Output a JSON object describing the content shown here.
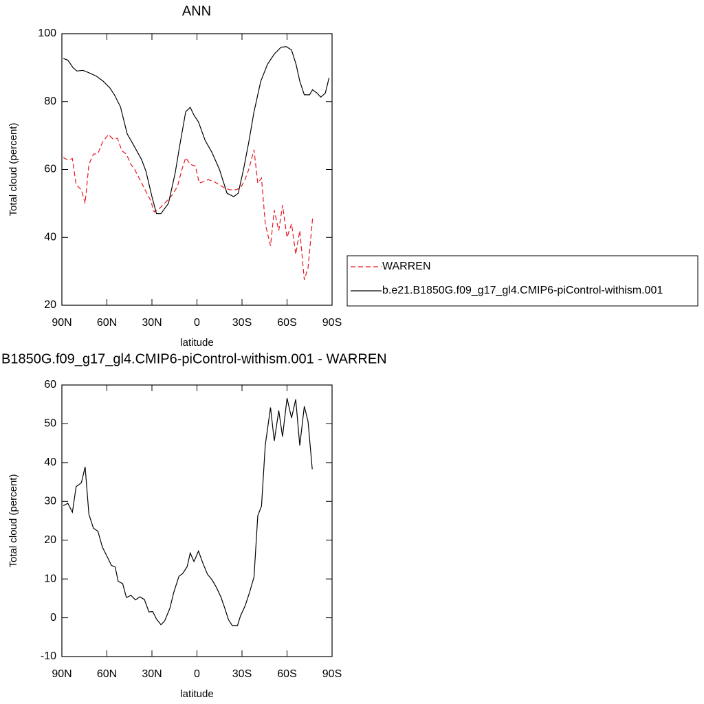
{
  "chart_data": [
    {
      "type": "line",
      "title": "ANN",
      "xlabel": "latitude",
      "ylabel": "Total cloud (percent)",
      "xlim": [
        90,
        -90
      ],
      "xticks": [
        {
          "value": 90,
          "label": "90N"
        },
        {
          "value": 60,
          "label": "60N"
        },
        {
          "value": 30,
          "label": "30N"
        },
        0,
        {
          "value": -30,
          "label": "30S"
        },
        {
          "value": -60,
          "label": "60S"
        },
        {
          "value": -90,
          "label": "90S"
        }
      ],
      "ylim": [
        20,
        100
      ],
      "yticks": [
        20,
        40,
        60,
        80,
        100
      ],
      "legend": "outside-right",
      "series": [
        {
          "name": "WARREN",
          "color": "#e8141e",
          "dash": "dashed",
          "x": [
            89,
            86,
            83,
            80.5,
            77,
            74.5,
            72,
            69,
            66,
            63,
            59,
            56,
            53,
            50,
            47,
            44,
            41.5,
            38,
            34,
            31,
            28.5,
            25,
            20.5,
            16.5,
            13,
            10,
            7.5,
            4.5,
            1,
            -1.5,
            -5,
            -7.5,
            -11,
            -15,
            -18.5,
            -22,
            -25.5,
            -29,
            -32,
            -34.5,
            -38,
            -40.5,
            -43,
            -45.5,
            -49,
            -51.5,
            -54.5,
            -57,
            -60,
            -63,
            -65.8,
            -68.5,
            -71.5,
            -74,
            -77
          ],
          "values": [
            63.5,
            62.8,
            63.2,
            55.5,
            54,
            50,
            61.5,
            64.5,
            64.7,
            68,
            70.3,
            69,
            69.2,
            65.5,
            64.5,
            61.5,
            60,
            57,
            53.5,
            51,
            47.5,
            48.5,
            50.5,
            52.5,
            55,
            60,
            63.5,
            61.5,
            61,
            56,
            56.5,
            57,
            56.5,
            55.5,
            54.5,
            54,
            54,
            54.5,
            57,
            60,
            65.8,
            56,
            57.5,
            44,
            37.5,
            48,
            42,
            49.5,
            40,
            44,
            35,
            42,
            27.5,
            31,
            45.5
          ]
        },
        {
          "name": "b.e21.B1850G.f09_g17_gl4.CMIP6-piControl-withism.001",
          "color": "#000000",
          "dash": "solid",
          "x": [
            89,
            86,
            82.6,
            80,
            76,
            72,
            67,
            62.5,
            58,
            55,
            51,
            46.5,
            42,
            37,
            34,
            30,
            27,
            24,
            19,
            14.5,
            11.5,
            7.5,
            4.5,
            2,
            -1,
            -5.5,
            -10,
            -15,
            -20,
            -24.5,
            -27.5,
            -31,
            -34.5,
            -38,
            -42.5,
            -47,
            -51.5,
            -56,
            -59.5,
            -63,
            -66,
            -68.5,
            -71.5,
            -75,
            -77,
            -80,
            -82.5,
            -85.5,
            -88
          ],
          "values": [
            92.7,
            92.2,
            90,
            89,
            89.2,
            88.5,
            87.5,
            86,
            84,
            82,
            78.5,
            70.5,
            67,
            63,
            59.5,
            52,
            47,
            47,
            50,
            59,
            67,
            77,
            78.3,
            76,
            74,
            68.5,
            65,
            60,
            53,
            52,
            53,
            60,
            68,
            77,
            86,
            91,
            94,
            96,
            96.2,
            95.2,
            91,
            86,
            82,
            82,
            83.5,
            82.5,
            81.3,
            82.5,
            87
          ]
        }
      ]
    },
    {
      "type": "line",
      "title": "B1850G.f09_g17_gl4.CMIP6-piControl-withism.001 - WARREN",
      "xlabel": "latitude",
      "ylabel": "Total cloud (percent)",
      "xlim": [
        90,
        -90
      ],
      "xticks": [
        {
          "value": 90,
          "label": "90N"
        },
        {
          "value": 60,
          "label": "60N"
        },
        {
          "value": 30,
          "label": "30N"
        },
        0,
        {
          "value": -30,
          "label": "30S"
        },
        {
          "value": -60,
          "label": "60S"
        },
        {
          "value": -90,
          "label": "90S"
        }
      ],
      "ylim": [
        -10,
        60
      ],
      "yticks": [
        -10,
        0,
        10,
        20,
        30,
        40,
        50,
        60
      ],
      "series": [
        {
          "color": "#000000",
          "dash": "solid",
          "x": [
            89,
            86,
            83,
            80.5,
            77,
            74.5,
            72,
            69,
            66,
            63,
            59.5,
            57,
            54.5,
            52.5,
            49.5,
            47,
            44,
            41,
            38,
            35,
            32,
            29.5,
            27,
            24,
            21.5,
            18,
            15.5,
            12,
            9.5,
            6.5,
            4.5,
            2,
            -1,
            -4,
            -7,
            -10,
            -13,
            -16,
            -18.5,
            -21,
            -23.5,
            -27,
            -29,
            -32,
            -35,
            -38,
            -40.5,
            -43,
            -45.5,
            -49,
            -51.5,
            -54.5,
            -57,
            -60,
            -63,
            -65.8,
            -68.5,
            -71.5,
            -74,
            -76.8
          ],
          "values": [
            28.9,
            29.5,
            27.2,
            33.8,
            34.8,
            38.9,
            26.7,
            23.1,
            22.3,
            18.2,
            15.5,
            13.5,
            13.1,
            9.4,
            8.8,
            5.2,
            5.8,
            4.6,
            5.4,
            4.7,
            1.5,
            1.6,
            -0.3,
            -1.8,
            -0.8,
            2.5,
            6.5,
            10.7,
            11.4,
            13.2,
            16.7,
            14.5,
            17.2,
            14,
            11.2,
            9.8,
            7.8,
            5.3,
            2.5,
            -0.5,
            -2,
            -2,
            0.5,
            3,
            6.5,
            10.5,
            26.3,
            28.8,
            44.5,
            54.2,
            45.6,
            53.4,
            46.7,
            56.6,
            51.5,
            56.3,
            44.4,
            54.5,
            50.6,
            38.3
          ]
        }
      ]
    }
  ]
}
